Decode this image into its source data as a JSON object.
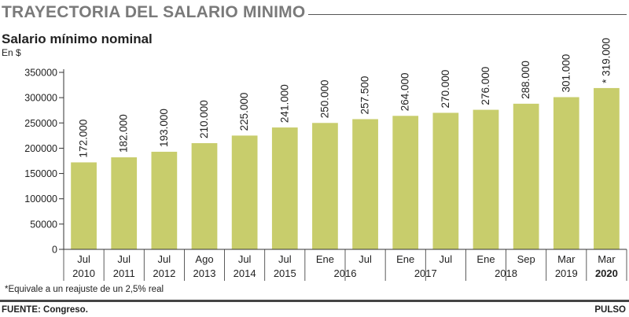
{
  "header": {
    "title": "TRAYECTORIA DEL SALARIO MINIMO",
    "subtitle": "Salario mínimo nominal",
    "unit": "En $"
  },
  "footer": {
    "footnote": "*Equivale a un reajuste de un 2,5% real",
    "source": "FUENTE: Congreso.",
    "brand": "PULSO"
  },
  "colors": {
    "bar": "#c8cd6c",
    "axis": "#333333",
    "title": "#7a7a7a"
  },
  "chart_data": {
    "type": "bar",
    "title": "Salario mínimo nominal",
    "ylabel": "En $",
    "ylim": [
      0,
      350000
    ],
    "yticks": [
      0,
      50000,
      100000,
      150000,
      200000,
      250000,
      300000,
      350000
    ],
    "categories": [
      {
        "month": "Jul",
        "year": "2010"
      },
      {
        "month": "Jul",
        "year": "2011"
      },
      {
        "month": "Jul",
        "year": "2012"
      },
      {
        "month": "Ago",
        "year": "2013"
      },
      {
        "month": "Jul",
        "year": "2014"
      },
      {
        "month": "Jul",
        "year": "2015"
      },
      {
        "month": "Ene",
        "year": "2016"
      },
      {
        "month": "Jul",
        "year": "2016"
      },
      {
        "month": "Ene",
        "year": "2017"
      },
      {
        "month": "Jul",
        "year": "2017"
      },
      {
        "month": "Ene",
        "year": "2018"
      },
      {
        "month": "Sep",
        "year": "2018"
      },
      {
        "month": "Mar",
        "year": "2019"
      },
      {
        "month": "Mar",
        "year": "2020"
      }
    ],
    "values": [
      172000,
      182000,
      193000,
      210000,
      225000,
      241000,
      250000,
      257500,
      264000,
      270000,
      276000,
      288000,
      301000,
      319000
    ],
    "value_labels": [
      "172.000",
      "182.000",
      "193.000",
      "210.000",
      "225.000",
      "241.000",
      "250.000",
      "257.500",
      "264.000",
      "270.000",
      "276.000",
      "288.000",
      "301.000",
      "* 319.000"
    ],
    "year_groups": [
      {
        "label": "2010",
        "from": 0,
        "to": 0
      },
      {
        "label": "2011",
        "from": 1,
        "to": 1
      },
      {
        "label": "2012",
        "from": 2,
        "to": 2
      },
      {
        "label": "2013",
        "from": 3,
        "to": 3
      },
      {
        "label": "2014",
        "from": 4,
        "to": 4
      },
      {
        "label": "2015",
        "from": 5,
        "to": 5
      },
      {
        "label": "2016",
        "from": 6,
        "to": 7
      },
      {
        "label": "2017",
        "from": 8,
        "to": 9
      },
      {
        "label": "2018",
        "from": 10,
        "to": 11
      },
      {
        "label": "2019",
        "from": 12,
        "to": 12
      },
      {
        "label": "2020",
        "from": 13,
        "to": 13
      }
    ],
    "grid": false,
    "legend": "none"
  }
}
